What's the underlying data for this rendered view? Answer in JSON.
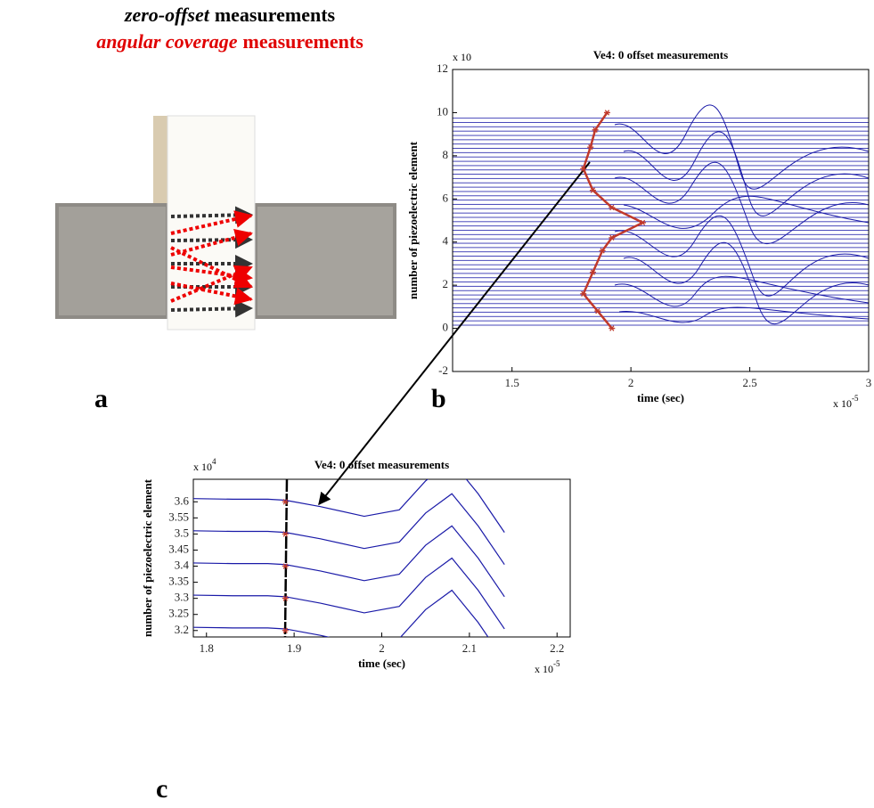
{
  "figure": {
    "title_italic": "zero-offset",
    "title_rest": "measurements",
    "subtitle_italic": "angular coverage",
    "subtitle_rest": "measurements",
    "panel_labels": [
      "a",
      "b",
      "c"
    ]
  },
  "chart_data": [
    {
      "type": "line",
      "title": "Ve4: 0 offset measurements",
      "xlabel": "time (sec)",
      "ylabel": "number of piezoelectric element",
      "x_multiplier": {
        "base": "x 10",
        "exponent": "-5"
      },
      "y_multiplier": {
        "base": "x 10"
      },
      "xlim": [
        1.25,
        3
      ],
      "ylim": [
        -2,
        12
      ],
      "xticks": [
        1.5,
        2,
        2.5,
        3
      ],
      "yticks": [
        -2,
        0,
        2,
        4,
        6,
        8,
        10,
        12
      ],
      "series": [
        {
          "color": "#c0392b",
          "linestyle": "-",
          "marker": "*",
          "x": [
            1.92,
            1.86,
            1.8,
            1.84,
            1.88,
            1.92,
            2.05,
            1.92,
            1.84,
            1.8,
            1.83,
            1.85,
            1.9
          ],
          "values": [
            0,
            0.8,
            1.6,
            2.6,
            3.6,
            4.2,
            4.9,
            5.6,
            6.4,
            7.4,
            8.4,
            9.2,
            10
          ]
        }
      ]
    },
    {
      "type": "line",
      "title": "Ve4: 0 offset measurements",
      "xlabel": "time (sec)",
      "ylabel": "number of piezoelectric element",
      "x_multiplier": {
        "base": "x 10",
        "exponent": "-5"
      },
      "y_multiplier": {
        "base": "x 10",
        "exponent": "4"
      },
      "xlim": [
        1.785,
        2.215
      ],
      "ylim": [
        3.18,
        3.67
      ],
      "xticks": [
        1.8,
        1.9,
        2,
        2.1,
        2.2
      ],
      "yticks": [
        3.2,
        3.25,
        3.3,
        3.35,
        3.4,
        3.45,
        3.5,
        3.55,
        3.6
      ],
      "series": [
        {
          "color": "#1a1aa8",
          "linestyle": "-",
          "x": [
            1.785,
            1.83,
            1.87,
            1.89,
            1.93,
            1.98,
            2.02,
            2.05,
            2.08,
            2.11,
            2.14
          ],
          "values": [
            3.21,
            3.208,
            3.208,
            3.205,
            3.185,
            3.155,
            3.175,
            3.265,
            3.325,
            3.225,
            3.105
          ]
        },
        {
          "color": "#1a1aa8",
          "linestyle": "-",
          "x": [
            1.785,
            1.83,
            1.87,
            1.89,
            1.93,
            1.98,
            2.02,
            2.05,
            2.08,
            2.11,
            2.14
          ],
          "values": [
            3.31,
            3.308,
            3.308,
            3.305,
            3.285,
            3.255,
            3.275,
            3.365,
            3.425,
            3.325,
            3.205
          ]
        },
        {
          "color": "#1a1aa8",
          "linestyle": "-",
          "x": [
            1.785,
            1.83,
            1.87,
            1.89,
            1.93,
            1.98,
            2.02,
            2.05,
            2.08,
            2.11,
            2.14
          ],
          "values": [
            3.41,
            3.408,
            3.408,
            3.405,
            3.385,
            3.355,
            3.375,
            3.465,
            3.525,
            3.425,
            3.305
          ]
        },
        {
          "color": "#1a1aa8",
          "linestyle": "-",
          "x": [
            1.785,
            1.83,
            1.87,
            1.89,
            1.93,
            1.98,
            2.02,
            2.05,
            2.08,
            2.11,
            2.14
          ],
          "values": [
            3.51,
            3.508,
            3.508,
            3.505,
            3.485,
            3.455,
            3.475,
            3.565,
            3.625,
            3.525,
            3.405
          ]
        },
        {
          "color": "#1a1aa8",
          "linestyle": "-",
          "x": [
            1.785,
            1.83,
            1.87,
            1.89,
            1.93,
            1.98,
            2.02,
            2.05,
            2.08,
            2.11,
            2.14
          ],
          "values": [
            3.61,
            3.608,
            3.608,
            3.605,
            3.585,
            3.555,
            3.575,
            3.665,
            3.725,
            3.625,
            3.505
          ]
        },
        {
          "color": "#c0392b",
          "linestyle": "none",
          "marker": "*",
          "x": [
            1.89,
            1.89,
            1.89,
            1.89,
            1.89
          ],
          "values": [
            3.2,
            3.3,
            3.4,
            3.5,
            3.6
          ]
        }
      ]
    }
  ]
}
